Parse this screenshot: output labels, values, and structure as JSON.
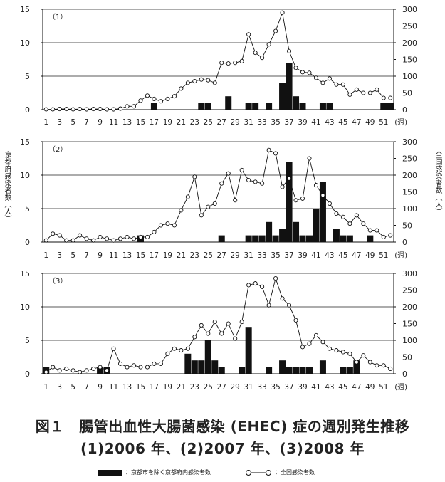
{
  "figure": {
    "caption_line1": "図１　腸管出血性大腸菌感染 (EHEC) 症の週別発生推移",
    "caption_line2": "(1)2006 年、(2)2007 年、(3)2008 年",
    "ylabel_left": "京都府感染者数（人）",
    "ylabel_right": "全国感染者数（人）",
    "legend_bar": "：京都市を除く京都府内感染者数",
    "legend_line": "：全国感染者数"
  },
  "chart_data": [
    {
      "type": "bar",
      "title": "（1）",
      "categories_label_suffix": "(週)",
      "x_tick_labels": [
        "1",
        "3",
        "5",
        "7",
        "9",
        "11",
        "13",
        "15",
        "17",
        "19",
        "21",
        "23",
        "25",
        "27",
        "29",
        "31",
        "33",
        "35",
        "37",
        "39",
        "41",
        "43",
        "45",
        "47",
        "49",
        "51"
      ],
      "left_axis": {
        "ylim": [
          0,
          15
        ],
        "ticks": [
          0,
          5,
          10,
          15
        ]
      },
      "right_axis": {
        "ylim": [
          0,
          300
        ],
        "ticks": [
          0,
          50,
          100,
          150,
          200,
          250,
          300
        ]
      },
      "bar_series": {
        "name": "京都市を除く京都府内感染者数",
        "values": [
          0,
          0,
          0,
          0,
          0,
          0,
          0,
          0,
          0,
          0,
          0,
          0,
          0,
          0,
          0,
          0,
          1,
          0,
          0,
          0,
          0,
          0,
          0,
          1,
          1,
          0,
          0,
          2,
          0,
          0,
          1,
          1,
          0,
          1,
          0,
          4,
          7,
          2,
          1,
          0,
          0,
          1,
          1,
          0,
          0,
          0,
          0,
          0,
          0,
          0,
          1,
          1
        ]
      },
      "line_series": {
        "name": "全国感染者数",
        "values": [
          1,
          1,
          2,
          2,
          1,
          2,
          1,
          2,
          2,
          1,
          1,
          3,
          10,
          10,
          27,
          42,
          32,
          25,
          32,
          40,
          63,
          80,
          85,
          90,
          88,
          80,
          140,
          138,
          140,
          145,
          225,
          170,
          155,
          195,
          235,
          290,
          175,
          125,
          112,
          110,
          95,
          80,
          93,
          75,
          75,
          45,
          60,
          50,
          50,
          60,
          35,
          35
        ]
      }
    },
    {
      "type": "bar",
      "title": "（2）",
      "categories_label_suffix": "(週)",
      "x_tick_labels": [
        "1",
        "3",
        "5",
        "7",
        "9",
        "11",
        "13",
        "15",
        "17",
        "19",
        "21",
        "23",
        "25",
        "27",
        "29",
        "31",
        "33",
        "35",
        "37",
        "39",
        "41",
        "43",
        "45",
        "47",
        "49",
        "51"
      ],
      "left_axis": {
        "ylim": [
          0,
          15
        ],
        "ticks": [
          0,
          5,
          10,
          15
        ]
      },
      "right_axis": {
        "ylim": [
          0,
          300
        ],
        "ticks": [
          0,
          50,
          100,
          150,
          200,
          250,
          300
        ]
      },
      "bar_series": {
        "name": "京都市を除く京都府内感染者数",
        "values": [
          0,
          0,
          0,
          0,
          0,
          0,
          0,
          0,
          0,
          0,
          0,
          0,
          0,
          0,
          1,
          0,
          0,
          0,
          0,
          0,
          0,
          0,
          0,
          0,
          0,
          0,
          1,
          0,
          0,
          0,
          1,
          1,
          1,
          3,
          1,
          2,
          12,
          3,
          1,
          1,
          5,
          9,
          0,
          2,
          1,
          1,
          0,
          0,
          1,
          0,
          0,
          0
        ]
      },
      "line_series": {
        "name": "全国感染者数",
        "values": [
          5,
          25,
          20,
          5,
          5,
          20,
          10,
          5,
          15,
          10,
          5,
          10,
          15,
          10,
          15,
          15,
          30,
          50,
          55,
          50,
          95,
          135,
          195,
          80,
          105,
          115,
          175,
          205,
          125,
          215,
          185,
          180,
          175,
          275,
          265,
          165,
          190,
          125,
          130,
          250,
          170,
          140,
          115,
          85,
          75,
          55,
          80,
          55,
          35,
          35,
          15,
          20
        ]
      }
    },
    {
      "type": "bar",
      "title": "（3）",
      "categories_label_suffix": "(週)",
      "x_tick_labels": [
        "1",
        "3",
        "5",
        "7",
        "9",
        "11",
        "13",
        "15",
        "17",
        "19",
        "21",
        "23",
        "25",
        "27",
        "29",
        "31",
        "33",
        "35",
        "37",
        "39",
        "41",
        "43",
        "45",
        "47",
        "49",
        "51"
      ],
      "left_axis": {
        "ylim": [
          0,
          15
        ],
        "ticks": [
          0,
          5,
          10,
          15
        ]
      },
      "right_axis": {
        "ylim": [
          0,
          300
        ],
        "ticks": [
          0,
          50,
          100,
          150,
          200,
          250,
          300
        ]
      },
      "bar_series": {
        "name": "京都市を除く京都府内感染者数",
        "values": [
          1,
          0,
          0,
          0,
          0,
          0,
          0,
          0,
          1,
          1,
          0,
          0,
          0,
          0,
          0,
          0,
          0,
          0,
          0,
          0,
          0,
          3,
          2,
          2,
          5,
          2,
          1,
          0,
          0,
          1,
          7,
          0,
          0,
          1,
          0,
          2,
          1,
          1,
          1,
          1,
          0,
          2,
          0,
          0,
          1,
          1,
          2,
          0,
          0,
          0,
          0,
          0
        ]
      },
      "line_series": {
        "name": "全国感染者数",
        "values": [
          5,
          20,
          10,
          15,
          10,
          5,
          10,
          15,
          20,
          10,
          75,
          30,
          20,
          25,
          20,
          20,
          30,
          30,
          60,
          75,
          70,
          75,
          110,
          145,
          120,
          155,
          120,
          150,
          105,
          155,
          265,
          270,
          260,
          205,
          285,
          225,
          205,
          160,
          80,
          90,
          115,
          95,
          75,
          70,
          65,
          60,
          35,
          55,
          35,
          25,
          25,
          15
        ]
      }
    }
  ]
}
